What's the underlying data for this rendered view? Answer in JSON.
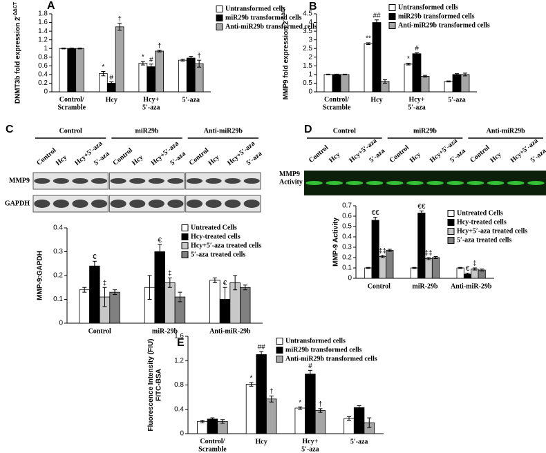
{
  "chart_data": [
    {
      "type": "bar",
      "panel": "A",
      "ylabel": "DNMT3b fold expression 2",
      "ylabel_superscript": "-ΔΔCT",
      "categories": [
        "Control/\nScramble",
        "Hcy",
        "Hcy+\n5′-aza",
        "5′-aza"
      ],
      "series": [
        {
          "name": "Untransformed cells",
          "color": "#ffffff",
          "values": [
            1,
            0.42,
            0.66,
            0.73
          ],
          "errors": [
            0.01,
            0.05,
            0.04,
            0.02
          ],
          "markers": [
            null,
            "*",
            "*",
            null
          ]
        },
        {
          "name": "miR29b transformed cells",
          "color": "#000000",
          "values": [
            1,
            0.2,
            0.58,
            0.78
          ],
          "errors": [
            0.01,
            0.03,
            0.06,
            0.04
          ],
          "markers": [
            null,
            "#",
            "#",
            null
          ]
        },
        {
          "name": "Anti-miR29b transformed cells",
          "color": "#a6a6a6",
          "values": [
            1,
            1.5,
            0.94,
            0.65
          ],
          "errors": [
            0.01,
            0.08,
            0.02,
            0.08
          ],
          "markers": [
            null,
            "†",
            "†",
            "†"
          ]
        }
      ],
      "ylim": [
        0,
        1.8
      ],
      "yticks": [
        0,
        0.2,
        0.4,
        0.6,
        0.8,
        1,
        1.2,
        1.4,
        1.6,
        1.8
      ],
      "grid": false
    },
    {
      "type": "bar",
      "panel": "B",
      "ylabel": "MMP9 fold expression 2",
      "ylabel_superscript": "-ΔΔCT",
      "categories": [
        "Control/\nScramble",
        "Hcy",
        "Hcy+\n5′-aza",
        "5′-aza"
      ],
      "series": [
        {
          "name": "Untransformed cells",
          "color": "#ffffff",
          "values": [
            1,
            2.78,
            1.6,
            0.6
          ],
          "errors": [
            0.02,
            0.05,
            0.05,
            0.03
          ],
          "markers": [
            null,
            "**",
            "*",
            null
          ]
        },
        {
          "name": "miR29b transformed cells",
          "color": "#000000",
          "values": [
            1,
            4,
            2.2,
            1
          ],
          "errors": [
            0.02,
            0.15,
            0.06,
            0.05
          ],
          "markers": [
            null,
            "##",
            "#",
            null
          ]
        },
        {
          "name": "Anti-miR29b transformed cells",
          "color": "#a6a6a6",
          "values": [
            1,
            0.6,
            0.9,
            1
          ],
          "errors": [
            0.02,
            0.1,
            0.05,
            0.08
          ],
          "markers": [
            null,
            null,
            null,
            null
          ]
        }
      ],
      "ylim": [
        0,
        4.5
      ],
      "yticks": [
        0,
        0.5,
        1,
        1.5,
        2,
        2.5,
        3,
        3.5,
        4,
        4.5
      ],
      "grid": false
    },
    {
      "type": "bar",
      "panel": "C",
      "ylabel": "MMP-9:GAPDH",
      "blot": {
        "style": "western",
        "groups": [
          "Control",
          "miR29b",
          "Anti-miR29b"
        ],
        "lanes": [
          "Control",
          "Hcy",
          "Hcy+5′-aza",
          "5′-aza"
        ],
        "rows": [
          "MMP9",
          "GAPDH"
        ]
      },
      "categories": [
        "Control",
        "miR-29b",
        "Anti-miR-29b"
      ],
      "series": [
        {
          "name": "Untreated Cells",
          "color": "#ffffff",
          "values": [
            0.14,
            0.15,
            0.18
          ],
          "errors": [
            0.01,
            0.05,
            0.01
          ],
          "markers": [
            null,
            null,
            null
          ]
        },
        {
          "name": "Hcy-treated cells",
          "color": "#000000",
          "values": [
            0.24,
            0.3,
            0.1
          ],
          "errors": [
            0.02,
            0.03,
            0.05
          ],
          "markers": [
            "€",
            "€",
            "€"
          ]
        },
        {
          "name": "Hcy+5′-aza treated cells",
          "color": "#c8c8c8",
          "values": [
            0.11,
            0.17,
            0.17
          ],
          "errors": [
            0.04,
            0.02,
            0.03
          ],
          "markers": [
            "‡",
            "‡",
            null
          ]
        },
        {
          "name": "5′-aza treated cells",
          "color": "#808080",
          "values": [
            0.13,
            0.11,
            0.15
          ],
          "errors": [
            0.01,
            0.02,
            0.01
          ],
          "markers": [
            null,
            null,
            null
          ]
        }
      ],
      "ylim": [
        0,
        0.4
      ],
      "yticks": [
        0,
        0.1,
        0.2,
        0.3,
        0.4
      ],
      "grid": false
    },
    {
      "type": "bar",
      "panel": "D",
      "ylabel": "MMP-9 Activity",
      "blot": {
        "style": "zymogram",
        "groups": [
          "Control",
          "miR29b",
          "Anti-miR29b"
        ],
        "lanes": [
          "Control",
          "Hcy",
          "Hcy+5′-aza",
          "5′-aza"
        ],
        "rows": [
          "MMP9\nActivity"
        ]
      },
      "categories": [
        "Control",
        "miR-29b",
        "Anti-miR-29b"
      ],
      "series": [
        {
          "name": "Untreated Cells",
          "color": "#ffffff",
          "values": [
            0.1,
            0.1,
            0.1
          ],
          "errors": [
            0.005,
            0.005,
            0.005
          ],
          "markers": [
            null,
            null,
            null
          ]
        },
        {
          "name": "Hcy-treated cells",
          "color": "#000000",
          "values": [
            0.56,
            0.63,
            0.04
          ],
          "errors": [
            0.03,
            0.02,
            0.01
          ],
          "markers": [
            "€€",
            "€€",
            "€"
          ]
        },
        {
          "name": "Hcy+5′-aza treated cells",
          "color": "#c8c8c8",
          "values": [
            0.21,
            0.19,
            0.09
          ],
          "errors": [
            0.01,
            0.01,
            0.01
          ],
          "markers": [
            "‡‡",
            "‡‡",
            "‡"
          ]
        },
        {
          "name": "5′-aza treated cells",
          "color": "#808080",
          "values": [
            0.27,
            0.2,
            0.08
          ],
          "errors": [
            0.01,
            0.01,
            0.01
          ],
          "markers": [
            null,
            null,
            null
          ]
        }
      ],
      "ylim": [
        0,
        0.7
      ],
      "yticks": [
        0,
        0.1,
        0.2,
        0.3,
        0.4,
        0.5,
        0.6,
        0.7
      ],
      "grid": false
    },
    {
      "type": "bar",
      "panel": "E",
      "ylabel": "Fluorescence Intensity (FIU)\nFITC-BSA",
      "categories": [
        "Control/\nScramble",
        "Hcy",
        "Hcy+\n5′-aza",
        "5′-aza"
      ],
      "series": [
        {
          "name": "Untransformed cells",
          "color": "#ffffff",
          "values": [
            0.2,
            0.81,
            0.42,
            0.25
          ],
          "errors": [
            0.02,
            0.03,
            0.02,
            0.03
          ],
          "markers": [
            null,
            "*",
            "*",
            null
          ]
        },
        {
          "name": "miR29b transformed cells",
          "color": "#000000",
          "values": [
            0.24,
            1.3,
            0.98,
            0.43
          ],
          "errors": [
            0.02,
            0.05,
            0.06,
            0.03
          ],
          "markers": [
            null,
            "##",
            "#",
            null
          ]
        },
        {
          "name": "Anti-miR29b transformed cells",
          "color": "#a6a6a6",
          "values": [
            0.2,
            0.57,
            0.38,
            0.18
          ],
          "errors": [
            0.03,
            0.05,
            0.03,
            0.08
          ],
          "markers": [
            null,
            "†",
            "†",
            null
          ]
        }
      ],
      "ylim": [
        0,
        1.6
      ],
      "yticks": [
        0,
        0.4,
        0.8,
        1.2,
        1.6
      ],
      "grid": false
    }
  ]
}
